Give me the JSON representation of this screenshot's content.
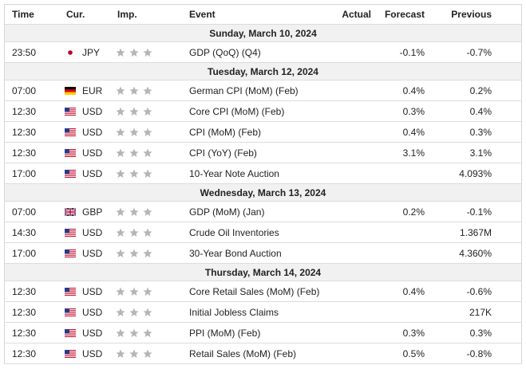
{
  "header": {
    "columns": [
      "Time",
      "Cur.",
      "Imp.",
      "Event",
      "Actual",
      "Forecast",
      "Previous"
    ]
  },
  "groups": [
    {
      "date": "Sunday, March 10, 2024",
      "rows": [
        {
          "time": "23:50",
          "currency": "JPY",
          "event": "GDP (QoQ) (Q4)",
          "forecast": "-0.1%",
          "previous": "-0.7%"
        }
      ]
    },
    {
      "date": "Tuesday, March 12, 2024",
      "rows": [
        {
          "time": "07:00",
          "currency": "EUR",
          "event": "German CPI (MoM) (Feb)",
          "forecast": "0.4%",
          "previous": "0.2%"
        },
        {
          "time": "12:30",
          "currency": "USD",
          "event": "Core CPI (MoM) (Feb)",
          "forecast": "0.3%",
          "previous": "0.4%"
        },
        {
          "time": "12:30",
          "currency": "USD",
          "event": "CPI (MoM) (Feb)",
          "forecast": "0.4%",
          "previous": "0.3%"
        },
        {
          "time": "12:30",
          "currency": "USD",
          "event": "CPI (YoY) (Feb)",
          "forecast": "3.1%",
          "previous": "3.1%"
        },
        {
          "time": "17:00",
          "currency": "USD",
          "event": "10-Year Note Auction",
          "previous": "4.093%"
        }
      ]
    },
    {
      "date": "Wednesday, March 13, 2024",
      "rows": [
        {
          "time": "07:00",
          "currency": "GBP",
          "event": "GDP (MoM) (Jan)",
          "forecast": "0.2%",
          "previous": "-0.1%"
        },
        {
          "time": "14:30",
          "currency": "USD",
          "event": "Crude Oil Inventories",
          "previous": "1.367M"
        },
        {
          "time": "17:00",
          "currency": "USD",
          "event": "30-Year Bond Auction",
          "previous": "4.360%"
        }
      ]
    },
    {
      "date": "Thursday, March 14, 2024",
      "rows": [
        {
          "time": "12:30",
          "currency": "USD",
          "event": "Core Retail Sales (MoM) (Feb)",
          "forecast": "0.4%",
          "previous": "-0.6%"
        },
        {
          "time": "12:30",
          "currency": "USD",
          "event": "Initial Jobless Claims",
          "previous": "217K"
        },
        {
          "time": "12:30",
          "currency": "USD",
          "event": "PPI (MoM) (Feb)",
          "forecast": "0.3%",
          "previous": "0.3%"
        },
        {
          "time": "12:30",
          "currency": "USD",
          "event": "Retail Sales (MoM) (Feb)",
          "forecast": "0.5%",
          "previous": "-0.8%"
        }
      ]
    }
  ]
}
